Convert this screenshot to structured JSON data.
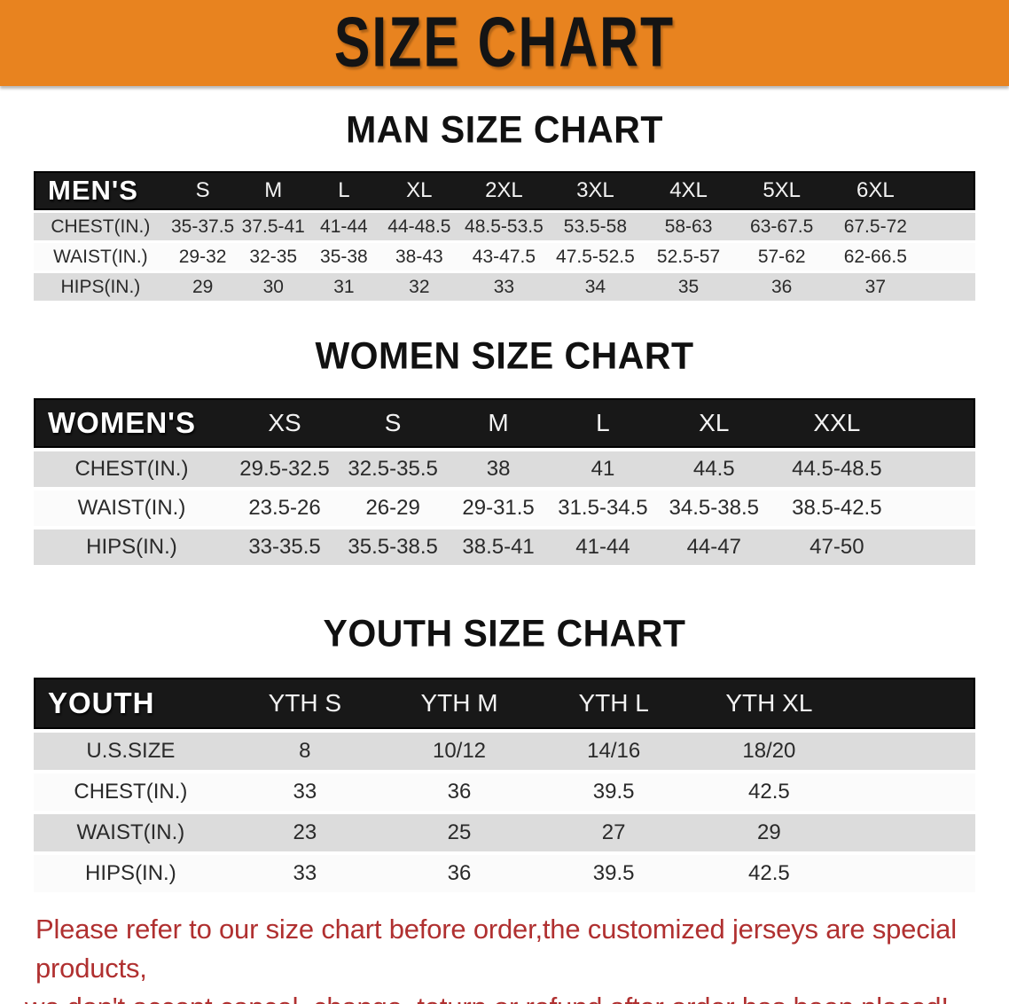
{
  "banner": {
    "title": "SIZE CHART"
  },
  "colors": {
    "banner_orange": "#E8831F",
    "header_black": "#181818",
    "row_gray": "#DCDCDC",
    "row_white": "#FBFBFB",
    "note_red": "#B03030"
  },
  "tables": {
    "men": {
      "heading": "MAN SIZE CHART",
      "corner_label": "MEN'S",
      "columns": [
        "S",
        "M",
        "L",
        "XL",
        "2XL",
        "3XL",
        "4XL",
        "5XL",
        "6XL"
      ],
      "rows": [
        {
          "label": "CHEST(IN.)",
          "values": [
            "35-37.5",
            "37.5-41",
            "41-44",
            "44-48.5",
            "48.5-53.5",
            "53.5-58",
            "58-63",
            "63-67.5",
            "67.5-72"
          ]
        },
        {
          "label": "WAIST(IN.)",
          "values": [
            "29-32",
            "32-35",
            "35-38",
            "38-43",
            "43-47.5",
            "47.5-52.5",
            "52.5-57",
            "57-62",
            "62-66.5"
          ]
        },
        {
          "label": "HIPS(IN.)",
          "values": [
            "29",
            "30",
            "31",
            "32",
            "33",
            "34",
            "35",
            "36",
            "37"
          ]
        }
      ]
    },
    "women": {
      "heading": "WOMEN SIZE CHART",
      "corner_label": "WOMEN'S",
      "columns": [
        "XS",
        "S",
        "M",
        "L",
        "XL",
        "XXL"
      ],
      "rows": [
        {
          "label": "CHEST(IN.)",
          "values": [
            "29.5-32.5",
            "32.5-35.5",
            "38",
            "41",
            "44.5",
            "44.5-48.5"
          ]
        },
        {
          "label": "WAIST(IN.)",
          "values": [
            "23.5-26",
            "26-29",
            "29-31.5",
            "31.5-34.5",
            "34.5-38.5",
            "38.5-42.5"
          ]
        },
        {
          "label": "HIPS(IN.)",
          "values": [
            "33-35.5",
            "35.5-38.5",
            "38.5-41",
            "41-44",
            "44-47",
            "47-50"
          ]
        }
      ]
    },
    "youth": {
      "heading": "YOUTH SIZE CHART",
      "corner_label": "YOUTH",
      "columns": [
        "YTH S",
        "YTH M",
        "YTH L",
        "YTH XL"
      ],
      "rows": [
        {
          "label": "U.S.SIZE",
          "values": [
            "8",
            "10/12",
            "14/16",
            "18/20"
          ]
        },
        {
          "label": "CHEST(IN.)",
          "values": [
            "33",
            "36",
            "39.5",
            "42.5"
          ]
        },
        {
          "label": "WAIST(IN.)",
          "values": [
            "23",
            "25",
            "27",
            "29"
          ]
        },
        {
          "label": "HIPS(IN.)",
          "values": [
            "33",
            "36",
            "39.5",
            "42.5"
          ]
        }
      ]
    }
  },
  "note": {
    "line1": "Please refer to our size chart before order,the customized jerseys are special products,",
    "line2": "we don't accept cancel, change, teturn or refund after order has been placed!"
  }
}
